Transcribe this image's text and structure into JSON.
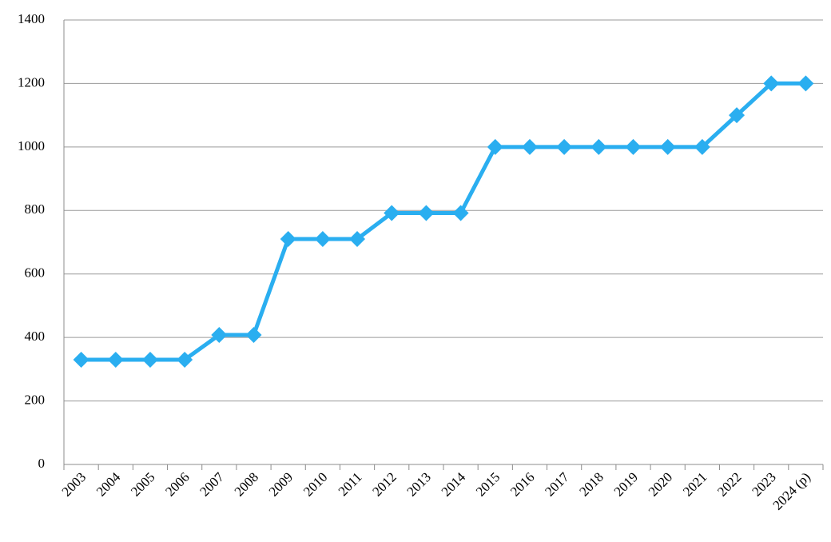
{
  "chart_data": {
    "type": "line",
    "categories": [
      "2003",
      "2004",
      "2005",
      "2006",
      "2007",
      "2008",
      "2009",
      "2010",
      "2011",
      "2012",
      "2013",
      "2014",
      "2015",
      "2016",
      "2017",
      "2018",
      "2019",
      "2020",
      "2021",
      "2022",
      "2023",
      "2024 (p)"
    ],
    "values": [
      330,
      330,
      330,
      330,
      408,
      408,
      710,
      710,
      710,
      792,
      792,
      792,
      1000,
      1000,
      1000,
      1000,
      1000,
      1000,
      1000,
      1100,
      1200,
      1200
    ],
    "color": "#2aaef0",
    "ylim": [
      0,
      1400
    ],
    "yticks": [
      0,
      200,
      400,
      600,
      800,
      1000,
      1200,
      1400
    ],
    "grid": true
  }
}
